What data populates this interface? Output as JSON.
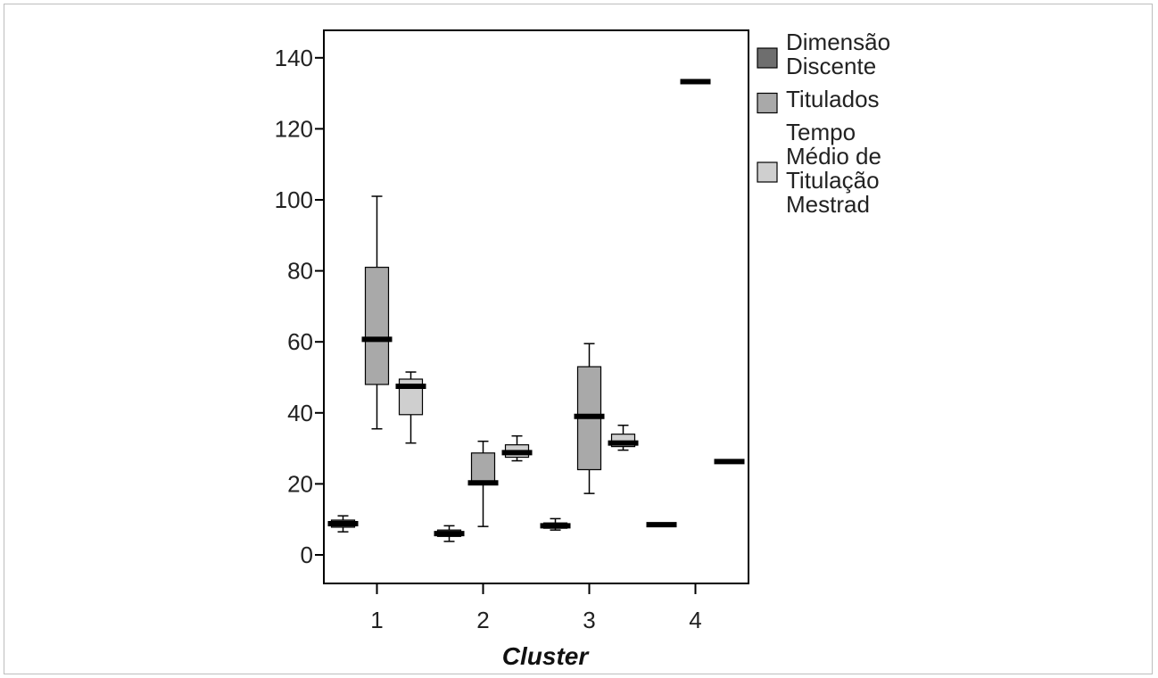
{
  "chart_data": {
    "type": "boxplot",
    "xlabel": "Cluster",
    "ylabel": "",
    "categories": [
      "1",
      "2",
      "3",
      "4"
    ],
    "ylim": [
      -8,
      147
    ],
    "yticks": [
      0,
      20,
      40,
      60,
      80,
      100,
      120,
      140
    ],
    "grid": false,
    "legend_position": "right",
    "series": [
      {
        "name": "Dimensão Discente",
        "legend_lines": [
          "Dimensão",
          "Discente"
        ],
        "color": "#6e6e6e",
        "boxes": [
          {
            "min": 6.5,
            "q1": 7.8,
            "median": 8.8,
            "q3": 9.8,
            "max": 11.0
          },
          {
            "min": 3.8,
            "q1": 5.2,
            "median": 6.0,
            "q3": 7.0,
            "max": 8.2
          },
          {
            "min": 7.0,
            "q1": 7.5,
            "median": 8.2,
            "q3": 9.0,
            "max": 10.2
          },
          {
            "min": 8.5,
            "q1": 8.5,
            "median": 8.5,
            "q3": 8.5,
            "max": 8.5
          }
        ]
      },
      {
        "name": "Titulados",
        "legend_lines": [
          "Titulados"
        ],
        "color": "#a9a9a9",
        "boxes": [
          {
            "min": 35.5,
            "q1": 48.0,
            "median": 60.7,
            "q3": 81.0,
            "max": 101.0
          },
          {
            "min": 8.0,
            "q1": 20.0,
            "median": 20.3,
            "q3": 28.7,
            "max": 32.0
          },
          {
            "min": 17.3,
            "q1": 24.0,
            "median": 39.0,
            "q3": 53.0,
            "max": 59.5
          },
          {
            "min": 133.3,
            "q1": 133.3,
            "median": 133.3,
            "q3": 133.3,
            "max": 133.3
          }
        ]
      },
      {
        "name": "Tempo Médio de Titulação Mestrado",
        "legend_lines": [
          "Tempo",
          "Médio de",
          "Titulação",
          "Mestrad"
        ],
        "color": "#cfcfcf",
        "boxes": [
          {
            "min": 31.5,
            "q1": 39.5,
            "median": 47.5,
            "q3": 49.5,
            "max": 51.5
          },
          {
            "min": 26.5,
            "q1": 27.5,
            "median": 28.8,
            "q3": 31.0,
            "max": 33.5
          },
          {
            "min": 29.5,
            "q1": 30.5,
            "median": 31.5,
            "q3": 34.0,
            "max": 36.5
          },
          {
            "min": 26.3,
            "q1": 26.3,
            "median": 26.3,
            "q3": 26.3,
            "max": 26.3
          }
        ]
      }
    ]
  }
}
